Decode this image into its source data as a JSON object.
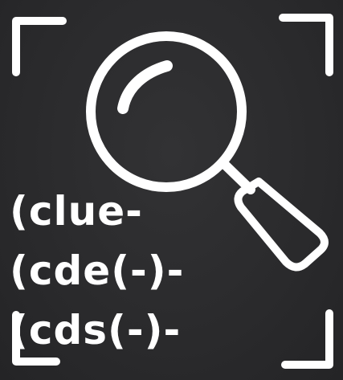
{
  "icon": {
    "name": "magnifying-glass-icon",
    "frame": "viewfinder-corners-icon",
    "stroke_color": "#ffffff",
    "background_color": "#2b2b2d"
  },
  "code_lines": [
    "(clue-",
    "(cde(-)-",
    "(cds(-)-"
  ]
}
